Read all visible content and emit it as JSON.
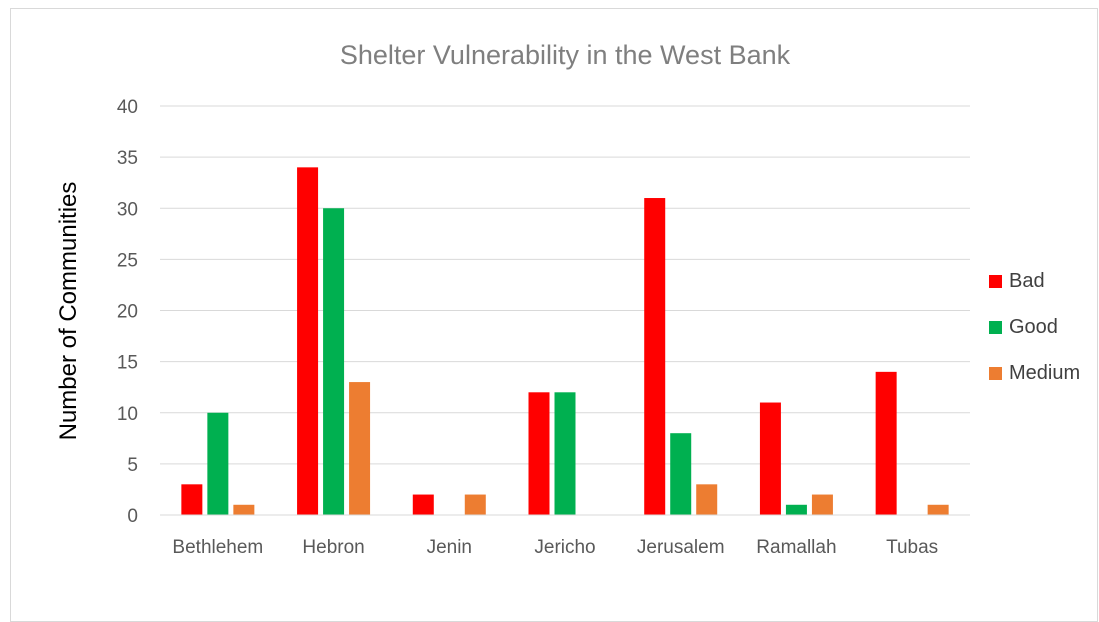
{
  "chart_data": {
    "type": "bar",
    "title": "Shelter Vulnerability in the West Bank",
    "xlabel": "",
    "ylabel": "Number of Communities",
    "ylim": [
      0,
      40
    ],
    "yticks": [
      0,
      5,
      10,
      15,
      20,
      25,
      30,
      35,
      40
    ],
    "grid": true,
    "legend_position": "right",
    "categories": [
      "Bethlehem",
      "Hebron",
      "Jenin",
      "Jericho",
      "Jerusalem",
      "Ramallah",
      "Tubas"
    ],
    "series": [
      {
        "name": "Bad",
        "color": "#ff0000",
        "values": [
          3,
          34,
          2,
          12,
          31,
          11,
          14
        ]
      },
      {
        "name": "Good",
        "color": "#00b050",
        "values": [
          10,
          30,
          null,
          12,
          8,
          1,
          null
        ]
      },
      {
        "name": "Medium",
        "color": "#ed7d31",
        "values": [
          1,
          13,
          2,
          null,
          3,
          2,
          1
        ]
      }
    ]
  }
}
